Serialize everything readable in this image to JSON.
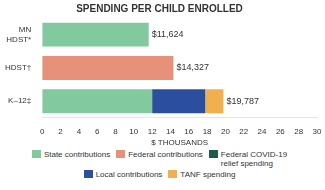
{
  "chart_data": {
    "type": "bar",
    "orientation": "horizontal",
    "stacked": true,
    "title": "SPENDING PER CHILD ENROLLED",
    "categories": [
      "MN\nHDST*",
      "HDST†",
      "K–12‡"
    ],
    "xlabel": "$ THOUSANDS",
    "xlim": [
      0,
      30
    ],
    "xticks": [
      0,
      2,
      4,
      6,
      8,
      10,
      12,
      14,
      16,
      18,
      20,
      22,
      24,
      26,
      28,
      30
    ],
    "grid": false,
    "legend": "bottom",
    "series": [
      {
        "name": "State contributions",
        "color": "#82C9A0",
        "values": [
          11.624,
          0,
          12.0
        ]
      },
      {
        "name": "Federal contributions",
        "color": "#E8917A",
        "values": [
          0,
          14.327,
          0
        ]
      },
      {
        "name": "Federal COVID-19\nrelief spending",
        "color": "#1D5C4A",
        "values": [
          null,
          null,
          null
        ]
      },
      {
        "name": "Local contributions",
        "color": "#2B4F9E",
        "values": [
          0,
          0,
          5.8
        ]
      },
      {
        "name": "TANF spending",
        "color": "#F0B050",
        "values": [
          0,
          0,
          1.987
        ]
      }
    ],
    "annotations": [
      {
        "text": "$11,624",
        "value": 11.624
      },
      {
        "text": "$14,327",
        "value": 14.327
      },
      {
        "text": "$19,787",
        "value": 19.787
      }
    ]
  }
}
